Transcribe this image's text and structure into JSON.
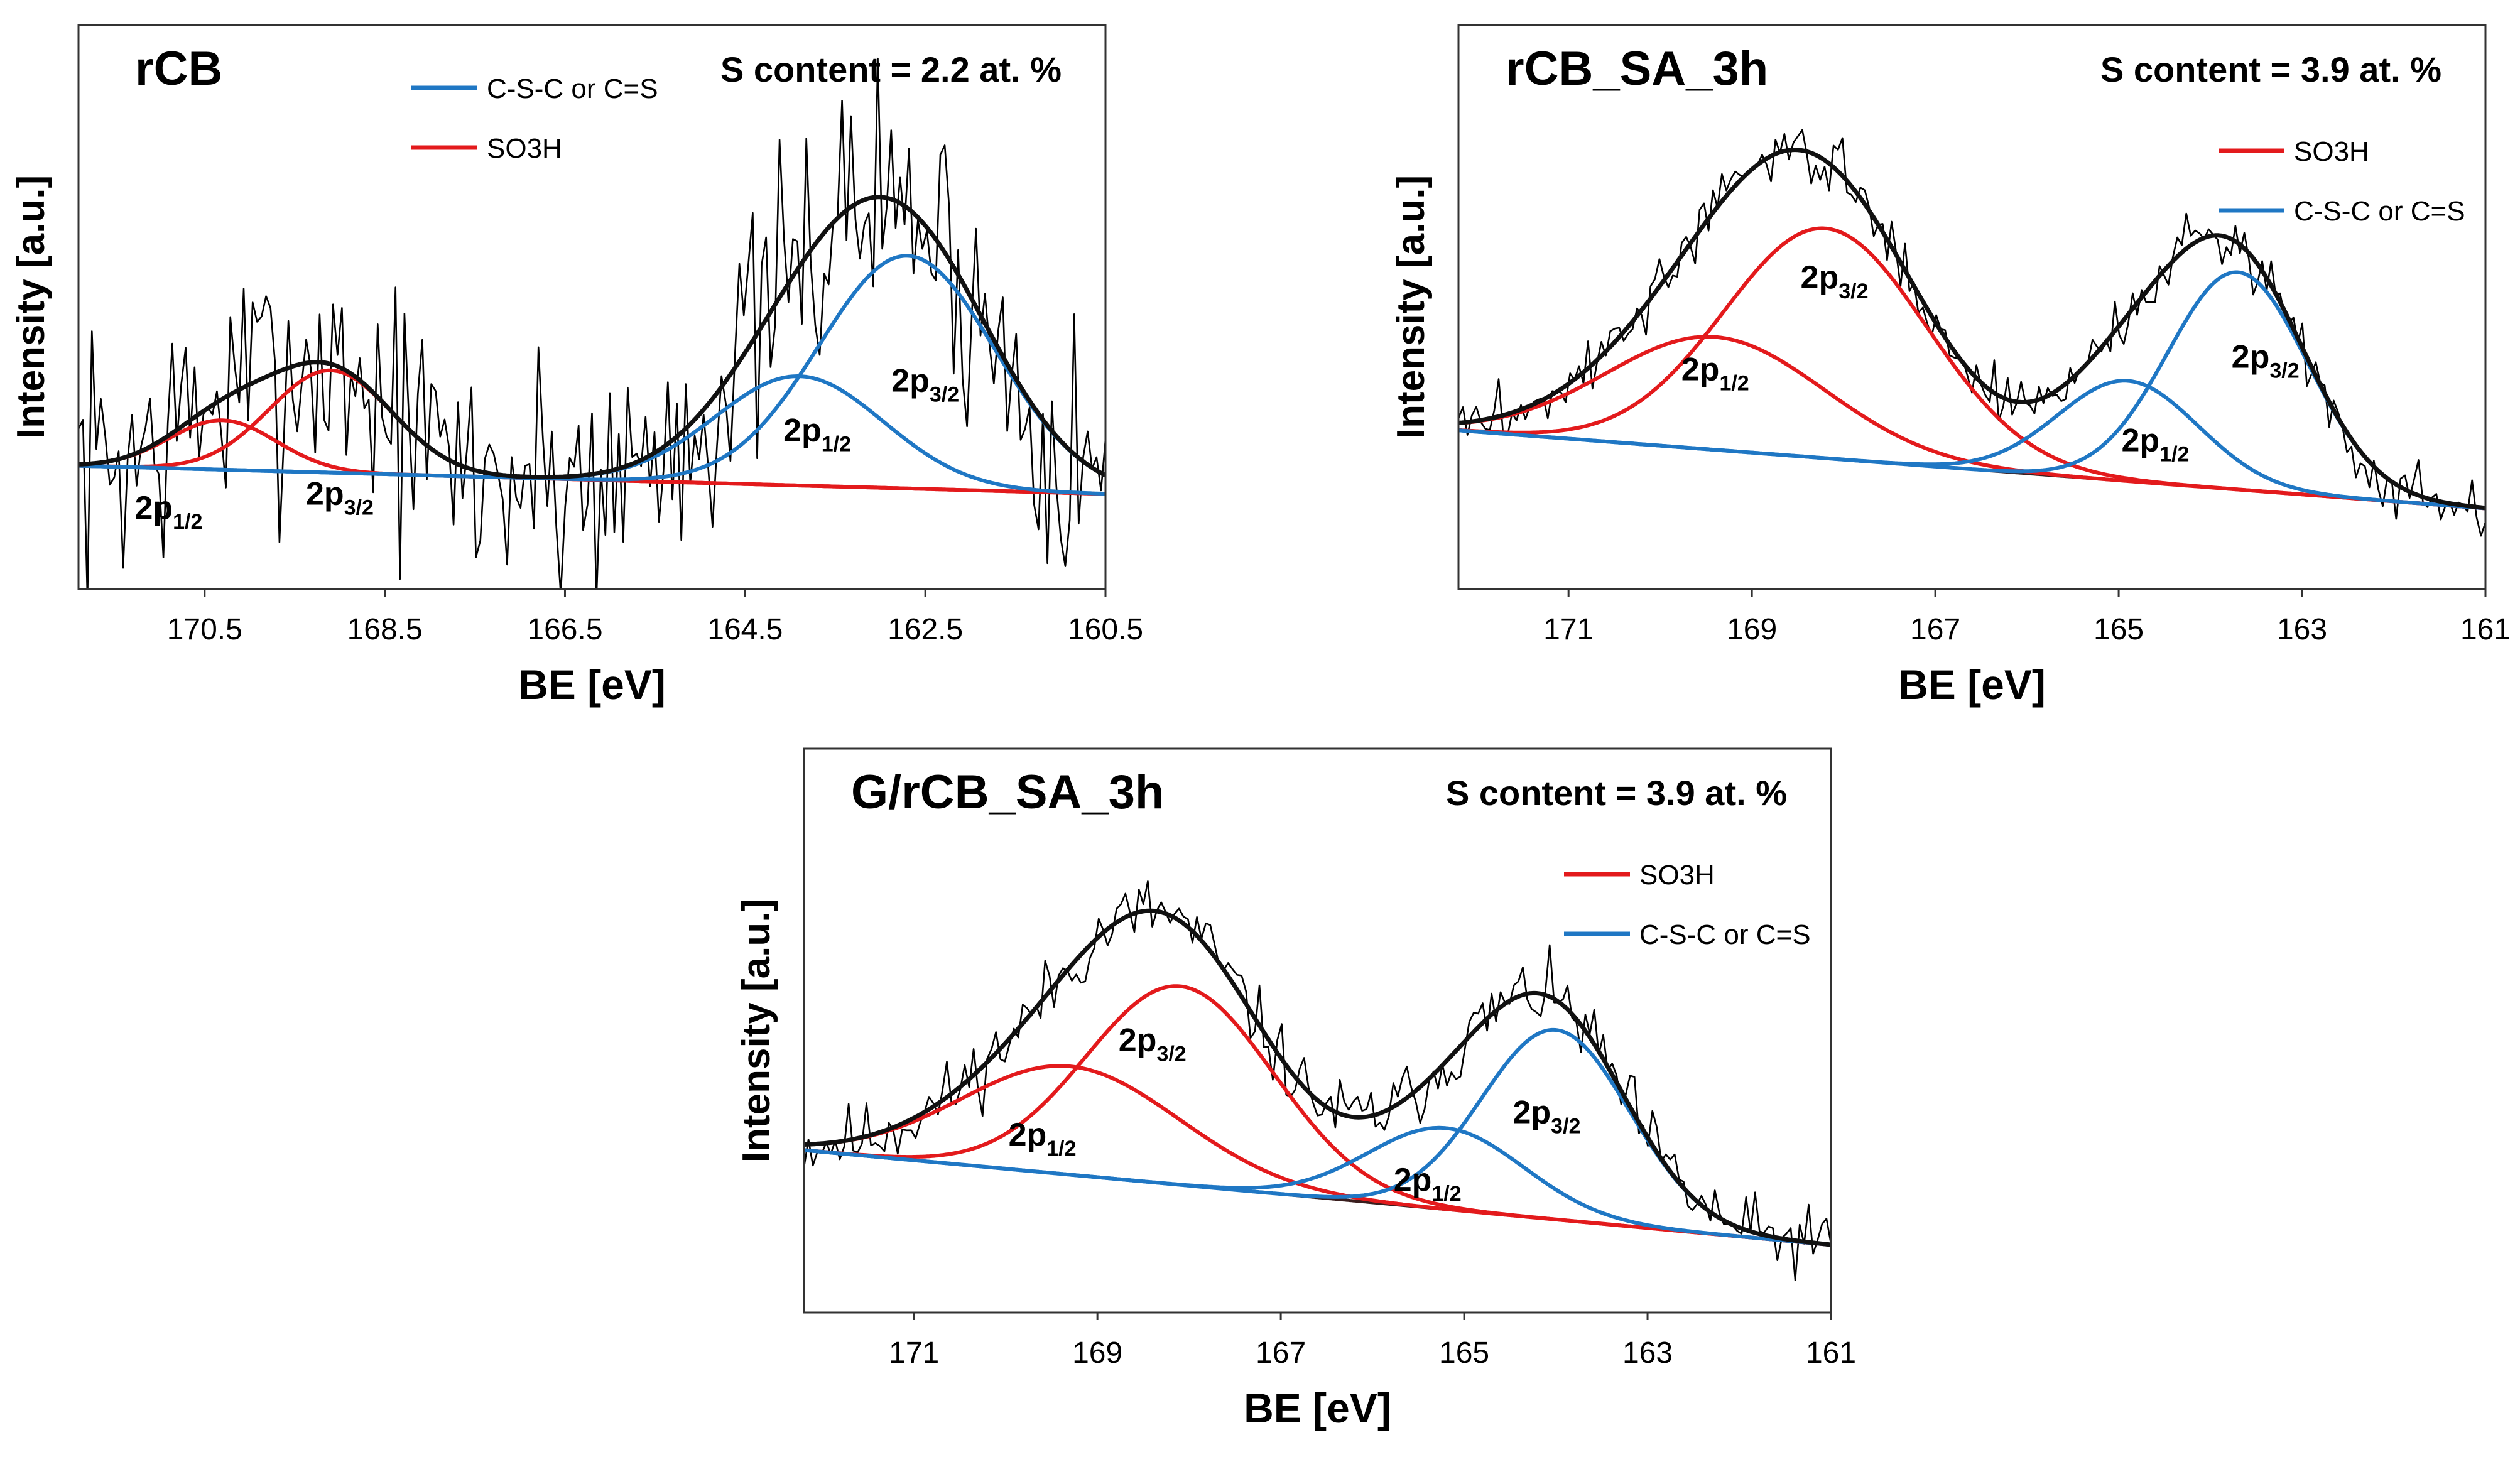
{
  "chart_data": [
    {
      "type": "line",
      "title": "rCB",
      "annotation": "S content = 2.2 at. %",
      "xlabel": "BE [eV]",
      "ylabel": "Intensity [a.u.]",
      "x_reversed": true,
      "xlim": [
        171.9,
        160.5
      ],
      "ylim": [
        -0.35,
        1.25
      ],
      "x_ticks": [
        "170.5",
        "168.5",
        "166.5",
        "164.5",
        "162.5",
        "160.5"
      ],
      "legend": [
        {
          "label": "C-S-C or C=S",
          "color": "#1f77c4"
        },
        {
          "label": "SO3H",
          "color": "#e31a1c"
        }
      ],
      "baseline": {
        "x0": 171.9,
        "y0": 0.0,
        "x1": 160.5,
        "y1": -0.08
      },
      "noise": {
        "amplitude": 0.38,
        "points": 230,
        "seed": 7
      },
      "components": [
        {
          "name": "SO3H 2p1/2",
          "group": "SO3H",
          "center": 170.3,
          "height": 0.14,
          "fwhm": 1.4
        },
        {
          "name": "SO3H 2p3/2",
          "group": "SO3H",
          "center": 169.1,
          "height": 0.29,
          "fwhm": 1.6
        },
        {
          "name": "C-S-C or C=S 2p1/2",
          "group": "C-S-C or C=S",
          "center": 163.9,
          "height": 0.31,
          "fwhm": 2.2
        },
        {
          "name": "C-S-C or C=S 2p3/2",
          "group": "C-S-C or C=S",
          "center": 162.7,
          "height": 0.66,
          "fwhm": 2.3
        }
      ],
      "peak_labels": [
        {
          "main": "2p",
          "sub": "1/2",
          "x": 170.9,
          "y": -0.15
        },
        {
          "main": "2p",
          "sub": "3/2",
          "x": 169.0,
          "y": -0.11
        },
        {
          "main": "2p",
          "sub": "1/2",
          "x": 163.7,
          "y": 0.07
        },
        {
          "main": "2p",
          "sub": "3/2",
          "x": 162.5,
          "y": 0.21
        }
      ]
    },
    {
      "type": "line",
      "title": "rCB_SA_3h",
      "annotation": "S content = 3.9 at. %",
      "xlabel": "BE [eV]",
      "ylabel": "Intensity [a.u.]",
      "x_reversed": true,
      "xlim": [
        172.2,
        161.0
      ],
      "ylim": [
        -0.2,
        1.15
      ],
      "x_ticks": [
        "171",
        "169",
        "167",
        "165",
        "163",
        "161"
      ],
      "legend": [
        {
          "label": "SO3H",
          "color": "#e31a1c"
        },
        {
          "label": "C-S-C or C=S",
          "color": "#1f77c4"
        }
      ],
      "baseline": {
        "x0": 172.2,
        "y0": 0.18,
        "x1": 161.4,
        "y1": 0.0
      },
      "noise": {
        "amplitude": 0.07,
        "points": 230,
        "seed": 3
      },
      "components": [
        {
          "name": "SO3H 2p1/2",
          "group": "SO3H",
          "center": 169.4,
          "height": 0.27,
          "fwhm": 2.8
        },
        {
          "name": "SO3H 2p3/2",
          "group": "SO3H",
          "center": 168.2,
          "height": 0.55,
          "fwhm": 2.6
        },
        {
          "name": "C-S-C or C=S 2p1/2",
          "group": "C-S-C or C=S",
          "center": 164.9,
          "height": 0.24,
          "fwhm": 1.8
        },
        {
          "name": "C-S-C or C=S 2p3/2",
          "group": "C-S-C or C=S",
          "center": 163.7,
          "height": 0.52,
          "fwhm": 1.8
        }
      ],
      "peak_labels": [
        {
          "main": "2p",
          "sub": "1/2",
          "x": 169.4,
          "y": 0.3
        },
        {
          "main": "2p",
          "sub": "3/2",
          "x": 168.1,
          "y": 0.52
        },
        {
          "main": "2p",
          "sub": "1/2",
          "x": 164.6,
          "y": 0.13
        },
        {
          "main": "2p",
          "sub": "3/2",
          "x": 163.4,
          "y": 0.33
        }
      ]
    },
    {
      "type": "line",
      "title": "G/rCB_SA_3h",
      "annotation": "S content = 3.9 at. %",
      "xlabel": "BE [eV]",
      "ylabel": "Intensity [a.u.]",
      "x_reversed": true,
      "xlim": [
        172.2,
        161.0
      ],
      "ylim": [
        -0.15,
        1.1
      ],
      "x_ticks": [
        "171",
        "169",
        "167",
        "165",
        "163",
        "161"
      ],
      "legend": [
        {
          "label": "SO3H",
          "color": "#e31a1c"
        },
        {
          "label": "C-S-C or C=S",
          "color": "#1f77c4"
        }
      ],
      "baseline": {
        "x0": 172.2,
        "y0": 0.21,
        "x1": 161.0,
        "y1": 0.0
      },
      "noise": {
        "amplitude": 0.08,
        "points": 230,
        "seed": 11
      },
      "components": [
        {
          "name": "SO3H 2p1/2",
          "group": "SO3H",
          "center": 169.3,
          "height": 0.24,
          "fwhm": 2.8
        },
        {
          "name": "SO3H 2p3/2",
          "group": "SO3H",
          "center": 168.1,
          "height": 0.44,
          "fwhm": 2.4
        },
        {
          "name": "C-S-C or C=S 2p1/2",
          "group": "C-S-C or C=S",
          "center": 165.2,
          "height": 0.18,
          "fwhm": 2.0
        },
        {
          "name": "C-S-C or C=S 2p3/2",
          "group": "C-S-C or C=S",
          "center": 164.0,
          "height": 0.42,
          "fwhm": 1.9
        }
      ],
      "peak_labels": [
        {
          "main": "2p",
          "sub": "1/2",
          "x": 169.6,
          "y": 0.22
        },
        {
          "main": "2p",
          "sub": "3/2",
          "x": 168.4,
          "y": 0.43
        },
        {
          "main": "2p",
          "sub": "1/2",
          "x": 165.4,
          "y": 0.12
        },
        {
          "main": "2p",
          "sub": "3/2",
          "x": 164.1,
          "y": 0.27
        }
      ]
    }
  ],
  "colors": {
    "envelope": "#111111",
    "raw": "#000000",
    "baseline": "#3a1e1e",
    "SO3H": "#e31a1c",
    "C-S-C or C=S": "#1f77c4"
  }
}
